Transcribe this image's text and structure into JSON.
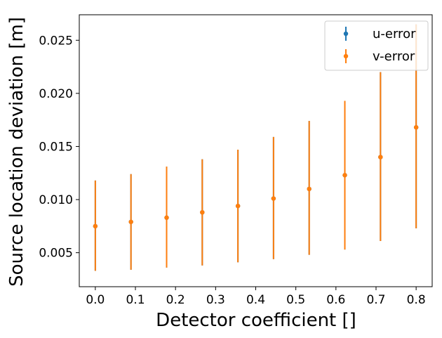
{
  "chart_data": {
    "type": "scatter",
    "style": "errorbar",
    "xlabel": "Detector coefficient []",
    "ylabel": "Source location deviation [m]",
    "xlim": [
      -0.04,
      0.84
    ],
    "ylim": [
      0.0018,
      0.0274
    ],
    "xticks": [
      0.0,
      0.1,
      0.2,
      0.3,
      0.4,
      0.5,
      0.6,
      0.7,
      0.8
    ],
    "xtick_labels": [
      "0.0",
      "0.1",
      "0.2",
      "0.3",
      "0.4",
      "0.5",
      "0.6",
      "0.7",
      "0.8"
    ],
    "yticks": [
      0.005,
      0.01,
      0.015,
      0.02,
      0.025
    ],
    "ytick_labels": [
      "0.005",
      "0.010",
      "0.015",
      "0.020",
      "0.025"
    ],
    "grid": false,
    "legend_position": "top-right",
    "x": [
      0.0,
      0.0889,
      0.1778,
      0.2667,
      0.3556,
      0.4444,
      0.5333,
      0.6222,
      0.7111,
      0.8
    ],
    "series": [
      {
        "name": "u-error",
        "color": "#1f77b4",
        "y": [
          0.0075,
          0.0079,
          0.0083,
          0.0088,
          0.0094,
          0.0101,
          0.011,
          0.0123,
          0.014,
          0.0168
        ],
        "lower": [
          0.0033,
          0.0034,
          0.0036,
          0.0038,
          0.0041,
          0.0044,
          0.0048,
          0.0053,
          0.0061,
          0.0073
        ],
        "upper": [
          0.0118,
          0.0124,
          0.0131,
          0.0138,
          0.0147,
          0.0159,
          0.0174,
          0.0193,
          0.022,
          0.0265
        ]
      },
      {
        "name": "v-error",
        "color": "#ff7f0e",
        "y": [
          0.0075,
          0.0079,
          0.0083,
          0.0088,
          0.0094,
          0.0101,
          0.011,
          0.0123,
          0.014,
          0.0168
        ],
        "lower": [
          0.0033,
          0.0034,
          0.0036,
          0.0038,
          0.0041,
          0.0044,
          0.0048,
          0.0053,
          0.0061,
          0.0073
        ],
        "upper": [
          0.0118,
          0.0124,
          0.0131,
          0.0138,
          0.0147,
          0.0159,
          0.0174,
          0.0193,
          0.022,
          0.0265
        ]
      }
    ]
  }
}
